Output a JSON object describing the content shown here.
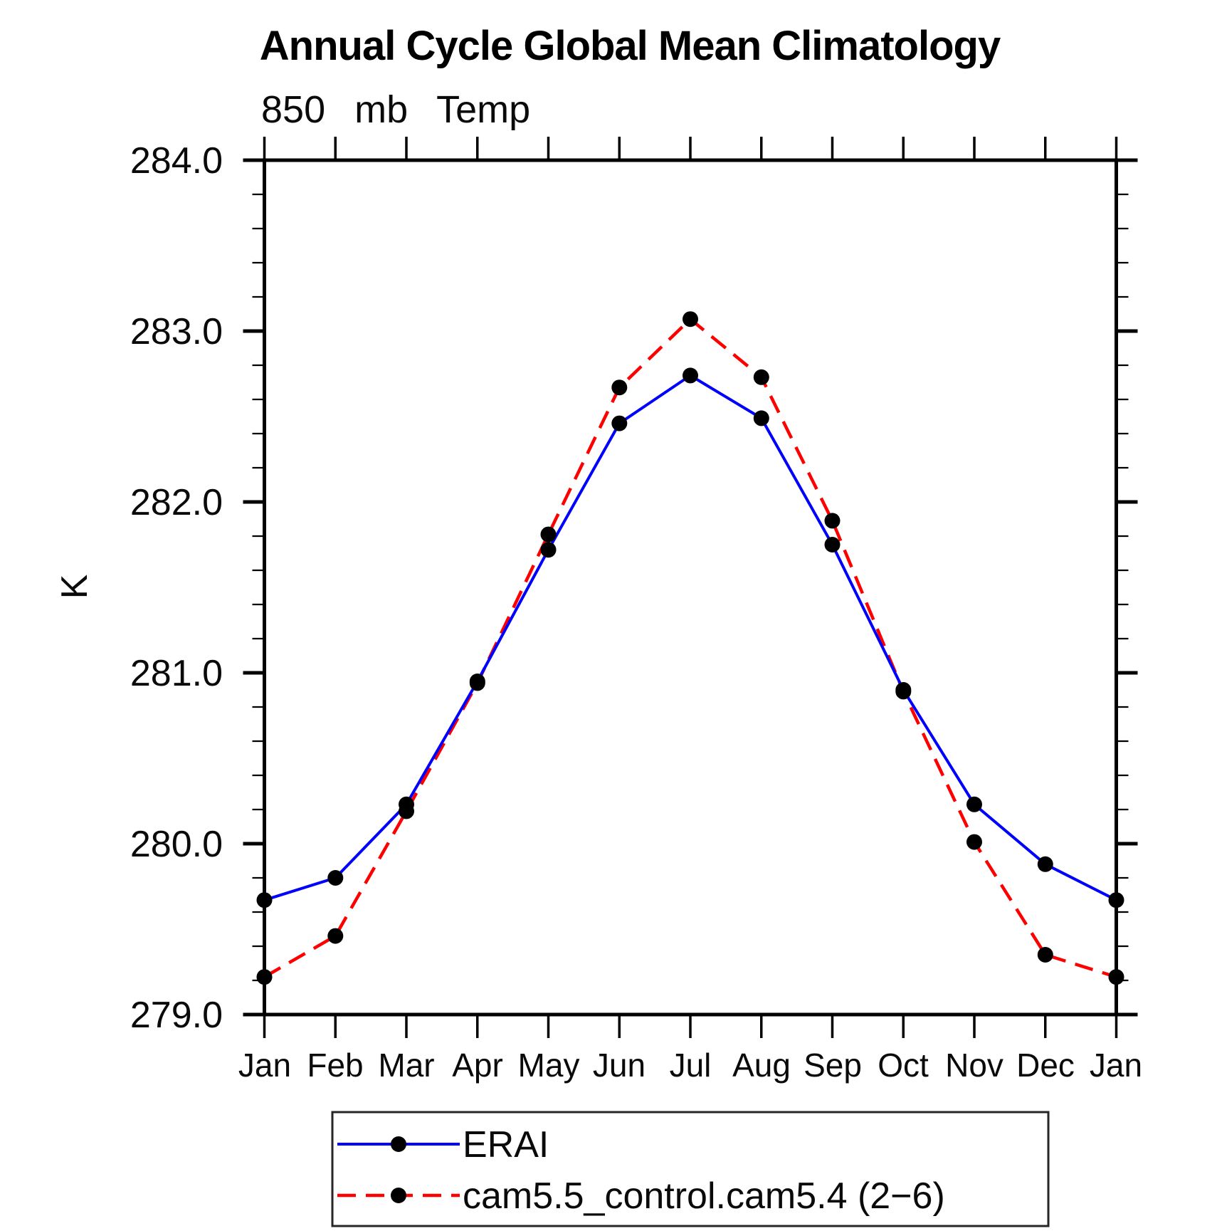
{
  "chart_data": {
    "type": "line",
    "title": "Annual Cycle Global Mean Climatology",
    "subtitle": "850 mb Temp",
    "ylabel": "K",
    "xlabel": "",
    "categories": [
      "Jan",
      "Feb",
      "Mar",
      "Apr",
      "May",
      "Jun",
      "Jul",
      "Aug",
      "Sep",
      "Oct",
      "Nov",
      "Dec",
      "Jan"
    ],
    "ylim": [
      279.0,
      284.0
    ],
    "ytick_major_step": 1.0,
    "ytick_minor_step": 0.2,
    "ytick_labels": [
      "284.0",
      "283.0",
      "282.0",
      "281.0",
      "280.0",
      "279.0"
    ],
    "grid": false,
    "legend_position": "bottom",
    "frame": "box",
    "marker": "filled-circle",
    "marker_color": "#000000",
    "series": [
      {
        "name": "ERAI",
        "color": "#0000ff",
        "line_style": "solid",
        "values": [
          279.67,
          279.8,
          280.23,
          280.95,
          281.72,
          282.46,
          282.74,
          282.49,
          281.75,
          280.9,
          280.23,
          279.88,
          279.67
        ]
      },
      {
        "name": "cam5.5_control.cam5.4 (2−6)",
        "color": "#ff0000",
        "line_style": "dashed",
        "values": [
          279.22,
          279.46,
          280.19,
          280.94,
          281.81,
          282.67,
          283.07,
          282.73,
          281.89,
          280.89,
          280.01,
          279.35,
          279.22
        ]
      }
    ]
  }
}
